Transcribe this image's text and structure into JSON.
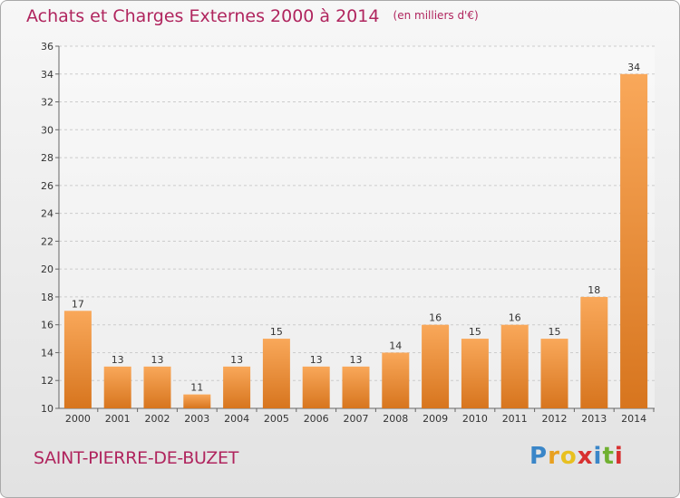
{
  "header": {
    "title": "Achats et Charges Externes 2000 à 2014",
    "unit": "(en milliers d'€)"
  },
  "commune": "SAINT-PIERRE-DE-BUZET",
  "brand": {
    "letters": [
      "P",
      "r",
      "o",
      "x",
      "i",
      "t",
      "i"
    ],
    "colors": [
      "#3a86c8",
      "#e8a020",
      "#e8c020",
      "#d83030",
      "#3a86c8",
      "#70b030",
      "#d83030"
    ]
  },
  "colors": {
    "bar_light": "#f9a85a",
    "bar_dark": "#d7751e",
    "title": "#b0255e",
    "grid": "#cccccc"
  },
  "chart_data": {
    "type": "bar",
    "title": "Achats et Charges Externes 2000 à 2014",
    "xlabel": "",
    "ylabel": "",
    "categories": [
      "2000",
      "2001",
      "2002",
      "2003",
      "2004",
      "2005",
      "2006",
      "2007",
      "2008",
      "2009",
      "2010",
      "2011",
      "2012",
      "2013",
      "2014"
    ],
    "values": [
      17,
      13,
      13,
      11,
      13,
      15,
      13,
      13,
      14,
      16,
      15,
      16,
      15,
      18,
      34
    ],
    "ylim": [
      10,
      36
    ],
    "yticks": [
      "10",
      "12",
      "14",
      "16",
      "18",
      "20",
      "22",
      "24",
      "26",
      "28",
      "30",
      "32",
      "34",
      "36"
    ],
    "grid": true
  }
}
